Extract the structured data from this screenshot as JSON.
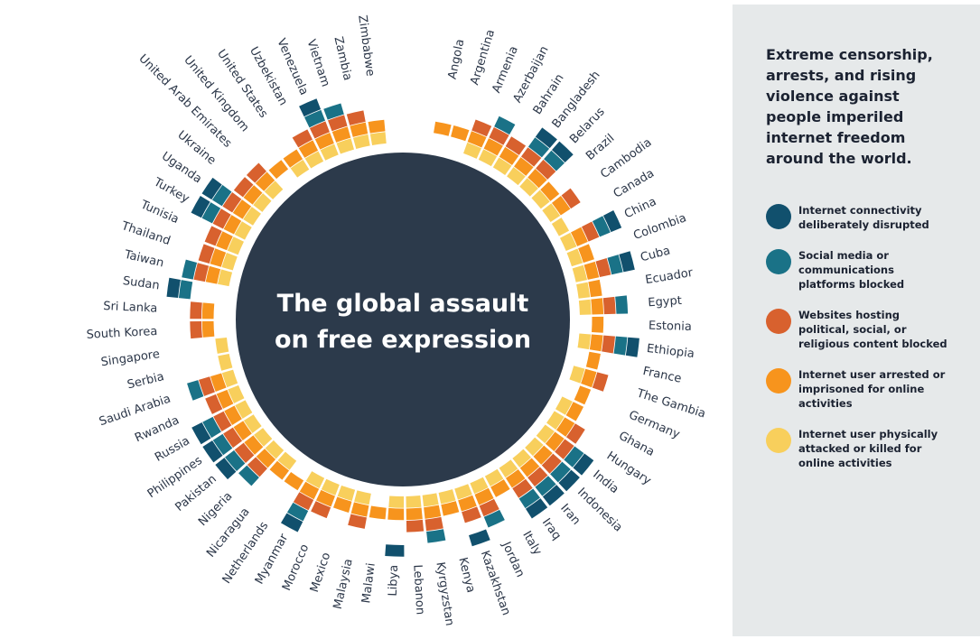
{
  "panel": {
    "title": "Extreme censorship, arrests, and rising violence against people imperiled internet freedom around the world."
  },
  "colors": {
    "center": "#2c3a4b",
    "label": "#2b3648"
  },
  "chart_data": {
    "type": "radial-tile",
    "title_line1": "The global assault",
    "title_line2": "on free expression",
    "categories": [
      {
        "key": "attacked",
        "label": "Internet user physically attacked or killed for online activities",
        "color": "#f8cf5c"
      },
      {
        "key": "arrested",
        "label": "Internet user arrested or imprisoned for online activities",
        "color": "#f7941d"
      },
      {
        "key": "websites",
        "label": "Websites hosting political, social, or religious content blocked",
        "color": "#d8612e"
      },
      {
        "key": "social",
        "label": "Social media or communications platforms blocked",
        "color": "#1a7287"
      },
      {
        "key": "connectivity",
        "label": "Internet connectivity deliberately disrupted",
        "color": "#11506d"
      }
    ],
    "countries": [
      {
        "name": "Angola",
        "values": [
          0,
          1,
          0,
          0,
          0
        ]
      },
      {
        "name": "Argentina",
        "values": [
          0,
          1,
          0,
          0,
          0
        ]
      },
      {
        "name": "Armenia",
        "values": [
          1,
          1,
          1,
          0,
          0
        ]
      },
      {
        "name": "Azerbaijan",
        "values": [
          1,
          1,
          1,
          1,
          0
        ]
      },
      {
        "name": "Bahrain",
        "values": [
          1,
          1,
          1,
          0,
          0
        ]
      },
      {
        "name": "Bangladesh",
        "values": [
          1,
          1,
          1,
          1,
          1
        ]
      },
      {
        "name": "Belarus",
        "values": [
          1,
          1,
          1,
          1,
          1
        ]
      },
      {
        "name": "Brazil",
        "values": [
          1,
          1,
          0,
          0,
          0
        ]
      },
      {
        "name": "Cambodia",
        "values": [
          1,
          1,
          1,
          0,
          0
        ]
      },
      {
        "name": "Canada",
        "values": [
          1,
          0,
          0,
          0,
          0
        ]
      },
      {
        "name": "China",
        "values": [
          1,
          1,
          1,
          1,
          1
        ]
      },
      {
        "name": "Colombia",
        "values": [
          1,
          1,
          0,
          0,
          0
        ]
      },
      {
        "name": "Cuba",
        "values": [
          1,
          1,
          1,
          1,
          1
        ]
      },
      {
        "name": "Ecuador",
        "values": [
          1,
          1,
          0,
          0,
          0
        ]
      },
      {
        "name": "Egypt",
        "values": [
          1,
          1,
          1,
          1,
          0
        ]
      },
      {
        "name": "Estonia",
        "values": [
          0,
          1,
          0,
          0,
          0
        ]
      },
      {
        "name": "Ethiopia",
        "values": [
          1,
          1,
          1,
          1,
          1
        ]
      },
      {
        "name": "France",
        "values": [
          0,
          1,
          0,
          0,
          0
        ]
      },
      {
        "name": "The Gambia",
        "values": [
          1,
          1,
          1,
          0,
          0
        ]
      },
      {
        "name": "Germany",
        "values": [
          0,
          1,
          0,
          0,
          0
        ]
      },
      {
        "name": "Ghana",
        "values": [
          1,
          1,
          0,
          0,
          0
        ]
      },
      {
        "name": "Hungary",
        "values": [
          1,
          1,
          1,
          0,
          0
        ]
      },
      {
        "name": "India",
        "values": [
          1,
          1,
          1,
          1,
          1
        ]
      },
      {
        "name": "Indonesia",
        "values": [
          1,
          1,
          1,
          1,
          1
        ]
      },
      {
        "name": "Iran",
        "values": [
          1,
          1,
          1,
          1,
          1
        ]
      },
      {
        "name": "Iraq",
        "values": [
          1,
          1,
          1,
          1,
          1
        ]
      },
      {
        "name": "Italy",
        "values": [
          1,
          1,
          0,
          0,
          0
        ]
      },
      {
        "name": "Jordan",
        "values": [
          1,
          1,
          1,
          1,
          0
        ]
      },
      {
        "name": "Kazakhstan",
        "values": [
          1,
          1,
          1,
          0,
          1
        ]
      },
      {
        "name": "Kenya",
        "values": [
          1,
          1,
          0,
          0,
          0
        ]
      },
      {
        "name": "Kyrgyzstan",
        "values": [
          1,
          1,
          1,
          1,
          0
        ]
      },
      {
        "name": "Lebanon",
        "values": [
          1,
          1,
          1,
          0,
          0
        ]
      },
      {
        "name": "Libya",
        "values": [
          1,
          1,
          0,
          0,
          1
        ]
      },
      {
        "name": "Malawi",
        "values": [
          0,
          1,
          0,
          0,
          0
        ]
      },
      {
        "name": "Malaysia",
        "values": [
          1,
          1,
          1,
          0,
          0
        ]
      },
      {
        "name": "Mexico",
        "values": [
          1,
          1,
          0,
          0,
          0
        ]
      },
      {
        "name": "Morocco",
        "values": [
          1,
          1,
          1,
          0,
          0
        ]
      },
      {
        "name": "Myanmar",
        "values": [
          1,
          1,
          1,
          1,
          1
        ]
      },
      {
        "name": "Netherlands",
        "values": [
          0,
          1,
          0,
          0,
          0
        ]
      },
      {
        "name": "Nicaragua",
        "values": [
          1,
          1,
          0,
          0,
          0
        ]
      },
      {
        "name": "Nigeria",
        "values": [
          1,
          1,
          1,
          1,
          0
        ]
      },
      {
        "name": "Pakistan",
        "values": [
          1,
          1,
          1,
          1,
          1
        ]
      },
      {
        "name": "Philippines",
        "values": [
          1,
          1,
          1,
          1,
          1
        ]
      },
      {
        "name": "Russia",
        "values": [
          1,
          1,
          1,
          1,
          1
        ]
      },
      {
        "name": "Rwanda",
        "values": [
          1,
          1,
          1,
          0,
          0
        ]
      },
      {
        "name": "Saudi Arabia",
        "values": [
          1,
          1,
          1,
          1,
          0
        ]
      },
      {
        "name": "Serbia",
        "values": [
          1,
          0,
          0,
          0,
          0
        ]
      },
      {
        "name": "Singapore",
        "values": [
          1,
          0,
          0,
          0,
          0
        ]
      },
      {
        "name": "South Korea",
        "values": [
          0,
          1,
          1,
          0,
          0
        ]
      },
      {
        "name": "Sri Lanka",
        "values": [
          0,
          1,
          1,
          0,
          0
        ]
      },
      {
        "name": "Sudan",
        "values": [
          0,
          0,
          0,
          1,
          1
        ]
      },
      {
        "name": "Taiwan",
        "values": [
          1,
          1,
          1,
          1,
          0
        ]
      },
      {
        "name": "Thailand",
        "values": [
          1,
          1,
          1,
          0,
          0
        ]
      },
      {
        "name": "Tunisia",
        "values": [
          1,
          1,
          1,
          0,
          0
        ]
      },
      {
        "name": "Turkey",
        "values": [
          1,
          1,
          1,
          1,
          1
        ]
      },
      {
        "name": "Uganda",
        "values": [
          1,
          1,
          1,
          1,
          1
        ]
      },
      {
        "name": "Ukraine",
        "values": [
          1,
          1,
          1,
          0,
          0
        ]
      },
      {
        "name": "United Arab Emirates",
        "values": [
          1,
          1,
          1,
          0,
          0
        ]
      },
      {
        "name": "United Kingdom",
        "values": [
          0,
          1,
          0,
          0,
          0
        ]
      },
      {
        "name": "United States",
        "values": [
          1,
          1,
          0,
          0,
          0
        ]
      },
      {
        "name": "Uzbekistan",
        "values": [
          1,
          1,
          1,
          0,
          0
        ]
      },
      {
        "name": "Venezuela",
        "values": [
          1,
          1,
          1,
          1,
          1
        ]
      },
      {
        "name": "Vietnam",
        "values": [
          1,
          1,
          1,
          1,
          0
        ]
      },
      {
        "name": "Zambia",
        "values": [
          1,
          1,
          1,
          0,
          0
        ]
      },
      {
        "name": "Zimbabwe",
        "values": [
          1,
          1,
          0,
          0,
          0
        ]
      }
    ]
  }
}
